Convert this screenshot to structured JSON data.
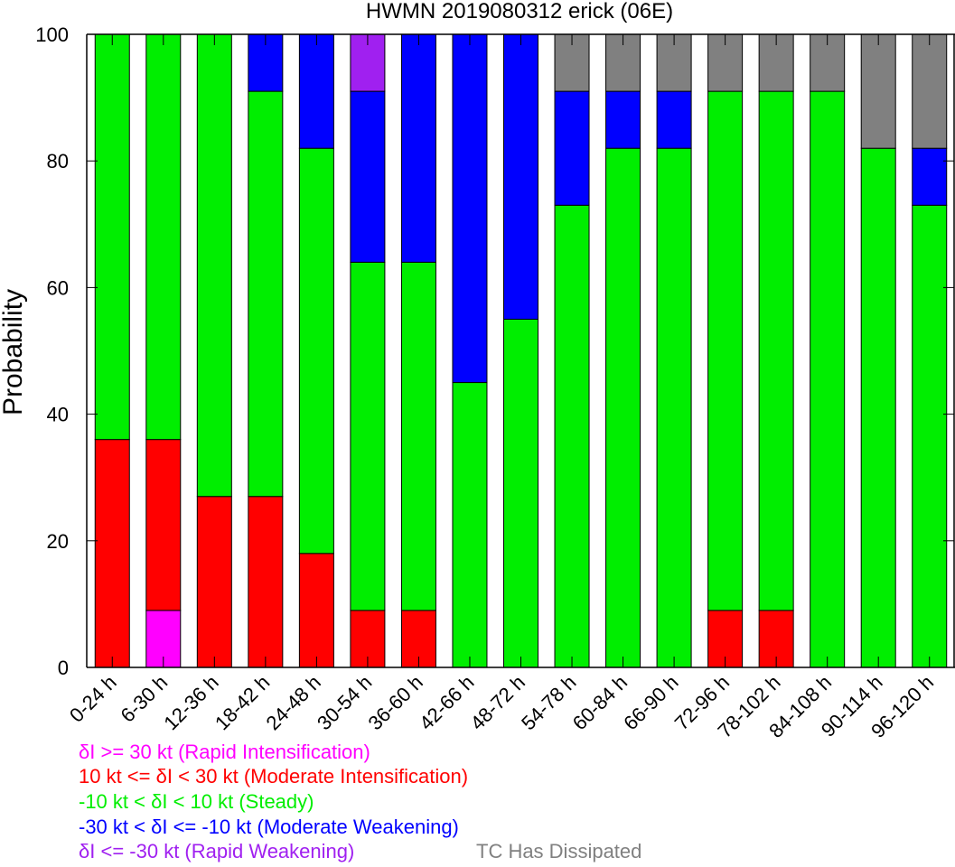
{
  "chart_data": {
    "type": "bar",
    "stacked": true,
    "title": "HWMN 2019080312 erick (06E)",
    "xlabel": "",
    "ylabel": "Probability",
    "ylim": [
      0,
      100
    ],
    "yticks": [
      0,
      20,
      40,
      60,
      80,
      100
    ],
    "grid": false,
    "categories": [
      "0-24 h",
      "6-30 h",
      "12-36 h",
      "18-42 h",
      "24-48 h",
      "30-54 h",
      "36-60 h",
      "42-66 h",
      "48-72 h",
      "54-78 h",
      "60-84 h",
      "66-90 h",
      "72-96 h",
      "78-102 h",
      "84-108 h",
      "90-114 h",
      "96-120 h"
    ],
    "series": [
      {
        "name": "δI >= 30 kt (Rapid Intensification)",
        "color": "#ff00ff",
        "values": [
          0,
          9,
          0,
          0,
          0,
          0,
          0,
          0,
          0,
          0,
          0,
          0,
          0,
          0,
          0,
          0,
          0
        ]
      },
      {
        "name": "10 kt <= δI < 30 kt (Moderate Intensification)",
        "color": "#ff0000",
        "values": [
          36,
          27,
          27,
          27,
          18,
          9,
          9,
          0,
          0,
          0,
          0,
          0,
          9,
          9,
          0,
          0,
          0
        ]
      },
      {
        "name": "-10 kt < δI < 10 kt (Steady)",
        "color": "#00ee00",
        "values": [
          64,
          64,
          73,
          64,
          64,
          55,
          55,
          45,
          55,
          73,
          82,
          82,
          82,
          82,
          91,
          82,
          73
        ]
      },
      {
        "name": "-30 kt < δI <= -10 kt (Moderate Weakening)",
        "color": "#0000ff",
        "values": [
          0,
          0,
          0,
          9,
          18,
          27,
          36,
          55,
          45,
          18,
          9,
          9,
          0,
          0,
          0,
          0,
          9
        ]
      },
      {
        "name": "δI <= -30 kt (Rapid Weakening)",
        "color": "#a020f0",
        "values": [
          0,
          0,
          0,
          0,
          0,
          9,
          0,
          0,
          0,
          0,
          0,
          0,
          0,
          0,
          0,
          0,
          0
        ]
      },
      {
        "name": "TC Has Dissipated",
        "color": "#808080",
        "values": [
          0,
          0,
          0,
          0,
          0,
          0,
          0,
          0,
          0,
          9,
          9,
          9,
          9,
          9,
          9,
          18,
          18
        ]
      }
    ]
  }
}
